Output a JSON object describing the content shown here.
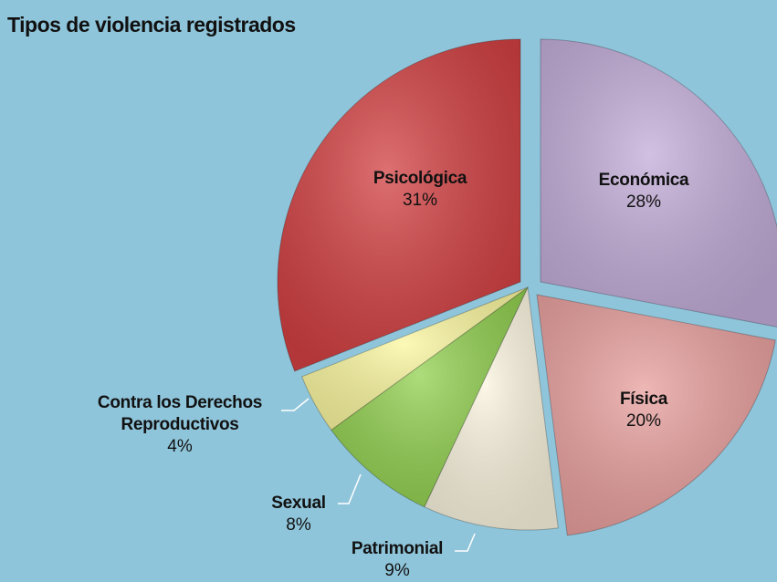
{
  "chart_data": {
    "type": "pie",
    "title": "Tipos de violencia registrados",
    "categories": [
      "Económica",
      "Física",
      "Patrimonial",
      "Sexual",
      "Contra los Derechos Reproductivos",
      "Psicológica"
    ],
    "values": [
      28,
      20,
      9,
      8,
      4,
      31
    ],
    "value_labels": [
      "28%",
      "20%",
      "9%",
      "8%",
      "4%",
      "31%"
    ],
    "colors": [
      "#c2acd8",
      "#e8a09e",
      "#fbf4df",
      "#92d050",
      "#fbf7a0",
      "#d24042"
    ]
  }
}
